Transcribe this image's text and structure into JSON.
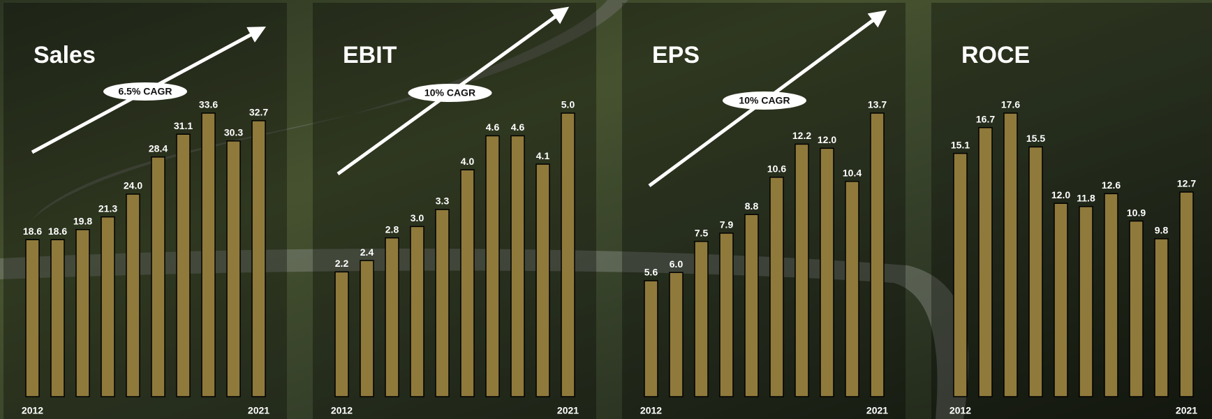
{
  "chart_data": [
    {
      "type": "bar",
      "title": "Sales",
      "annotation": "6.5% CAGR",
      "color": "#8f7a3c",
      "categories": [
        "2012",
        null,
        null,
        null,
        null,
        null,
        null,
        null,
        null,
        "2021"
      ],
      "values": [
        18.6,
        18.6,
        19.8,
        21.3,
        24.0,
        28.4,
        31.1,
        33.6,
        30.3,
        32.7
      ],
      "value_labels": [
        "18.6",
        "18.6",
        "19.8",
        "21.3",
        "24.0",
        "28.4",
        "31.1",
        "33.6",
        "30.3",
        "32.7"
      ]
    },
    {
      "type": "bar",
      "title": "EBIT",
      "annotation": "10% CAGR",
      "color": "#8f7a3c",
      "categories": [
        "2012",
        null,
        null,
        null,
        null,
        null,
        null,
        null,
        null,
        "2021"
      ],
      "values": [
        2.2,
        2.4,
        2.8,
        3.0,
        3.3,
        4.0,
        4.6,
        4.6,
        4.1,
        5.0
      ],
      "value_labels": [
        "2.2",
        "2.4",
        "2.8",
        "3.0",
        "3.3",
        "4.0",
        "4.6",
        "4.6",
        "4.1",
        "5.0"
      ]
    },
    {
      "type": "bar",
      "title": "EPS",
      "annotation": "10% CAGR",
      "color": "#8f7a3c",
      "categories": [
        "2012",
        null,
        null,
        null,
        null,
        null,
        null,
        null,
        null,
        "2021"
      ],
      "values": [
        5.6,
        6.0,
        7.5,
        7.9,
        8.8,
        10.6,
        12.2,
        12.0,
        10.4,
        13.7
      ],
      "value_labels": [
        "5.6",
        "6.0",
        "7.5",
        "7.9",
        "8.8",
        "10.6",
        "12.2",
        "12.0",
        "10.4",
        "13.7"
      ]
    },
    {
      "type": "bar",
      "title": "ROCE",
      "color": "#8f7a3c",
      "categories": [
        "2012",
        null,
        null,
        null,
        null,
        null,
        null,
        null,
        null,
        "2021"
      ],
      "values": [
        15.1,
        16.7,
        17.6,
        15.5,
        12.0,
        11.8,
        12.6,
        10.9,
        9.8,
        12.7
      ],
      "value_labels": [
        "15.1",
        "16.7",
        "17.6",
        "15.5",
        "12.0",
        "11.8",
        "12.6",
        "10.9",
        "9.8",
        "12.7"
      ]
    }
  ]
}
